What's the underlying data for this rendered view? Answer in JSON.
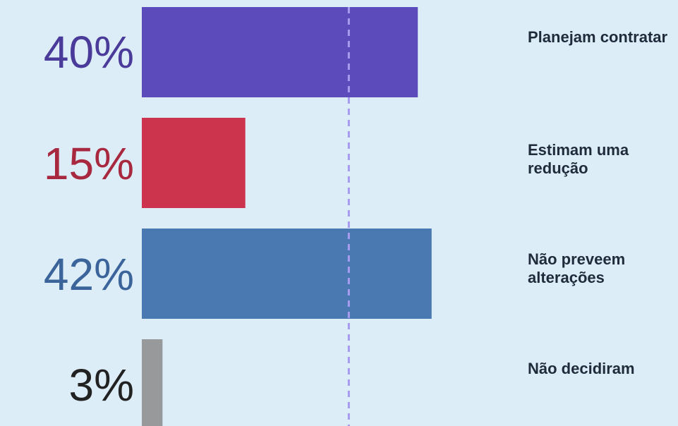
{
  "chart_data": {
    "type": "bar",
    "orientation": "horizontal",
    "categories": [
      "Planejam contratar",
      "Estimam uma redução",
      "Não preveem alterações",
      "Não decidiram"
    ],
    "values": [
      40,
      15,
      42,
      3
    ],
    "value_labels": [
      "40%",
      "15%",
      "42%",
      "3%"
    ],
    "colors": [
      "#5c4bbb",
      "#cc334c",
      "#4a78b0",
      "#98999a"
    ],
    "label_colors": [
      "#4a3a99",
      "#a8283f",
      "#3b649a",
      "#222222"
    ],
    "reference_line": {
      "value": 30,
      "style": "dashed",
      "color": "#a89bef"
    },
    "xlim": [
      0,
      100
    ],
    "grid": false,
    "legend": "none",
    "title": "",
    "xlabel": "",
    "ylabel": ""
  }
}
